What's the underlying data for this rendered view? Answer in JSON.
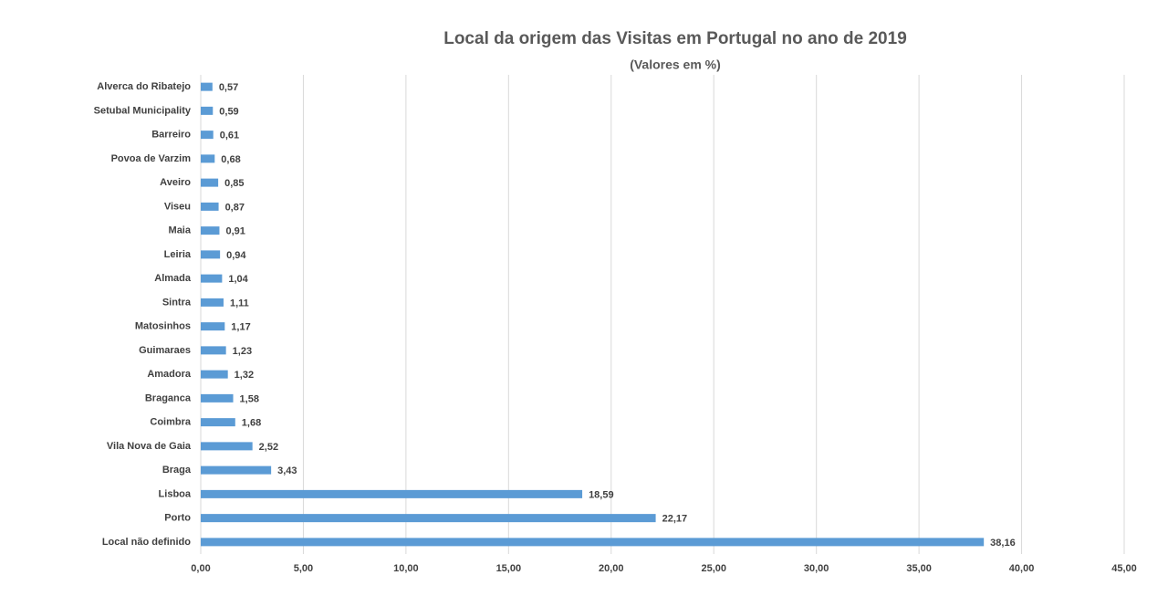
{
  "chart_data": {
    "type": "hbar",
    "title": "Local da origem das Visitas em Portugal no ano de 2019",
    "subtitle": "(Valores em %)",
    "categories": [
      "Alverca do Ribatejo",
      "Setubal Municipality",
      "Barreiro",
      "Povoa de Varzim",
      "Aveiro",
      "Viseu",
      "Maia",
      "Leiria",
      "Almada",
      "Sintra",
      "Matosinhos",
      "Guimaraes",
      "Amadora",
      "Braganca",
      "Coimbra",
      "Vila Nova de Gaia",
      "Braga",
      "Lisboa",
      "Porto",
      "Local não definido"
    ],
    "values": [
      0.57,
      0.59,
      0.61,
      0.68,
      0.85,
      0.87,
      0.91,
      0.94,
      1.04,
      1.11,
      1.17,
      1.23,
      1.32,
      1.58,
      1.68,
      2.52,
      3.43,
      18.59,
      22.17,
      38.16
    ],
    "value_labels": [
      "0,57",
      "0,59",
      "0,61",
      "0,68",
      "0,85",
      "0,87",
      "0,91",
      "0,94",
      "1,04",
      "1,11",
      "1,17",
      "1,23",
      "1,32",
      "1,58",
      "1,68",
      "2,52",
      "3,43",
      "18,59",
      "22,17",
      "38,16"
    ],
    "color": "#5b9bd5",
    "xlim": [
      0,
      45
    ],
    "xticks": [
      {
        "value": 0,
        "label": "0,00"
      },
      {
        "value": 5,
        "label": "5,00"
      },
      {
        "value": 10,
        "label": "10,00"
      },
      {
        "value": 15,
        "label": "15,00"
      },
      {
        "value": 20,
        "label": "20,00"
      },
      {
        "value": 25,
        "label": "25,00"
      },
      {
        "value": 30,
        "label": "30,00"
      },
      {
        "value": 35,
        "label": "35,00"
      },
      {
        "value": 40,
        "label": "40,00"
      },
      {
        "value": 45,
        "label": "45,00"
      }
    ],
    "grid": true
  }
}
